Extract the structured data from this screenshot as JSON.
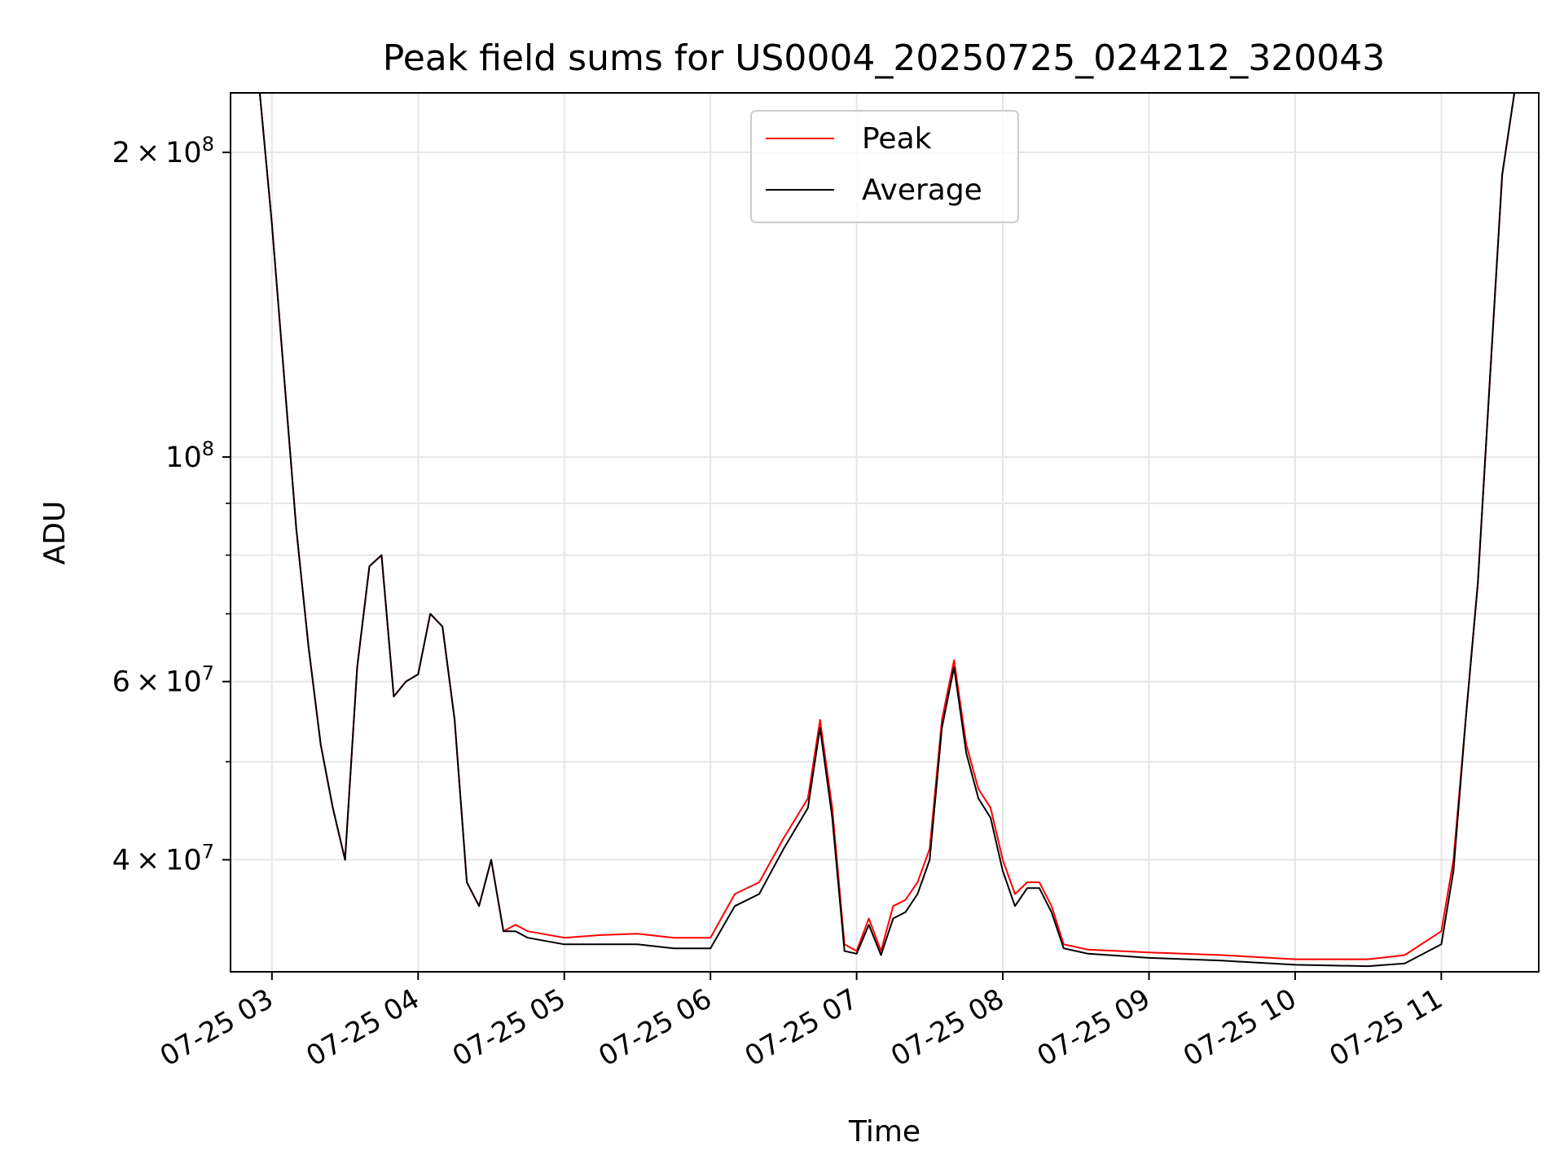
{
  "chart_data": {
    "type": "line",
    "title": "Peak field sums for US0004_20250725_024212_320043",
    "xlabel": "Time",
    "ylabel": "ADU",
    "yscale": "log",
    "xlim": [
      "2025-07-25 02:43",
      "2025-07-25 11:40"
    ],
    "ylim": [
      31000000,
      229000000
    ],
    "grid": true,
    "legend_position": "top-center",
    "x_ticks": [
      {
        "label": "07-25 03",
        "time": "2025-07-25 03:00"
      },
      {
        "label": "07-25 04",
        "time": "2025-07-25 04:00"
      },
      {
        "label": "07-25 05",
        "time": "2025-07-25 05:00"
      },
      {
        "label": "07-25 06",
        "time": "2025-07-25 06:00"
      },
      {
        "label": "07-25 07",
        "time": "2025-07-25 07:00"
      },
      {
        "label": "07-25 08",
        "time": "2025-07-25 08:00"
      },
      {
        "label": "07-25 09",
        "time": "2025-07-25 09:00"
      },
      {
        "label": "07-25 10",
        "time": "2025-07-25 10:00"
      },
      {
        "label": "07-25 11",
        "time": "2025-07-25 11:00"
      }
    ],
    "y_major_ticks": [
      {
        "base": "2 × 10",
        "exp": "8",
        "value": 200000000
      },
      {
        "base": "10",
        "exp": "8",
        "value": 100000000
      },
      {
        "base": "6 × 10",
        "exp": "7",
        "value": 60000000
      },
      {
        "base": "4 × 10",
        "exp": "7",
        "value": 40000000
      }
    ],
    "y_minor_ticks": [
      90000000,
      80000000,
      70000000,
      50000000,
      30000000
    ],
    "series": [
      {
        "name": "Peak",
        "color": "#ff0000",
        "x": [
          "2025-07-25 02:43",
          "2025-07-25 02:55",
          "2025-07-25 03:00",
          "2025-07-25 03:05",
          "2025-07-25 03:10",
          "2025-07-25 03:15",
          "2025-07-25 03:20",
          "2025-07-25 03:25",
          "2025-07-25 03:30",
          "2025-07-25 03:35",
          "2025-07-25 03:40",
          "2025-07-25 03:45",
          "2025-07-25 03:50",
          "2025-07-25 03:55",
          "2025-07-25 04:00",
          "2025-07-25 04:05",
          "2025-07-25 04:10",
          "2025-07-25 04:15",
          "2025-07-25 04:20",
          "2025-07-25 04:25",
          "2025-07-25 04:30",
          "2025-07-25 04:35",
          "2025-07-25 04:40",
          "2025-07-25 04:45",
          "2025-07-25 05:00",
          "2025-07-25 05:15",
          "2025-07-25 05:30",
          "2025-07-25 05:45",
          "2025-07-25 06:00",
          "2025-07-25 06:10",
          "2025-07-25 06:20",
          "2025-07-25 06:30",
          "2025-07-25 06:40",
          "2025-07-25 06:45",
          "2025-07-25 06:50",
          "2025-07-25 06:55",
          "2025-07-25 07:00",
          "2025-07-25 07:05",
          "2025-07-25 07:10",
          "2025-07-25 07:15",
          "2025-07-25 07:20",
          "2025-07-25 07:25",
          "2025-07-25 07:30",
          "2025-07-25 07:35",
          "2025-07-25 07:40",
          "2025-07-25 07:45",
          "2025-07-25 07:50",
          "2025-07-25 07:55",
          "2025-07-25 08:00",
          "2025-07-25 08:05",
          "2025-07-25 08:10",
          "2025-07-25 08:15",
          "2025-07-25 08:20",
          "2025-07-25 08:25",
          "2025-07-25 08:30",
          "2025-07-25 08:35",
          "2025-07-25 09:00",
          "2025-07-25 09:30",
          "2025-07-25 10:00",
          "2025-07-25 10:30",
          "2025-07-25 10:45",
          "2025-07-25 11:00",
          "2025-07-25 11:05",
          "2025-07-25 11:10",
          "2025-07-25 11:15",
          "2025-07-25 11:20",
          "2025-07-25 11:25",
          "2025-07-25 11:30",
          "2025-07-25 11:35",
          "2025-07-25 11:40"
        ],
        "y": [
          229000000,
          229000000,
          170000000,
          120000000,
          85000000,
          65000000,
          52000000,
          45000000,
          40000000,
          62000000,
          78000000,
          80000000,
          58000000,
          60000000,
          61000000,
          70000000,
          68000000,
          55000000,
          38000000,
          36000000,
          40000000,
          34000000,
          34500000,
          34000000,
          33500000,
          33700000,
          33800000,
          33500000,
          33500000,
          37000000,
          38000000,
          42000000,
          46000000,
          55000000,
          45000000,
          33000000,
          32500000,
          35000000,
          32500000,
          36000000,
          36500000,
          38000000,
          41000000,
          55000000,
          63000000,
          52000000,
          47000000,
          45000000,
          40000000,
          37000000,
          38000000,
          38000000,
          36000000,
          33000000,
          32800000,
          32600000,
          32400000,
          32200000,
          31900000,
          31900000,
          32200000,
          34000000,
          40000000,
          55000000,
          75000000,
          120000000,
          190000000,
          229000000,
          229000000,
          229000000
        ]
      },
      {
        "name": "Average",
        "color": "#000000",
        "x": [
          "2025-07-25 02:43",
          "2025-07-25 02:55",
          "2025-07-25 03:00",
          "2025-07-25 03:05",
          "2025-07-25 03:10",
          "2025-07-25 03:15",
          "2025-07-25 03:20",
          "2025-07-25 03:25",
          "2025-07-25 03:30",
          "2025-07-25 03:35",
          "2025-07-25 03:40",
          "2025-07-25 03:45",
          "2025-07-25 03:50",
          "2025-07-25 03:55",
          "2025-07-25 04:00",
          "2025-07-25 04:05",
          "2025-07-25 04:10",
          "2025-07-25 04:15",
          "2025-07-25 04:20",
          "2025-07-25 04:25",
          "2025-07-25 04:30",
          "2025-07-25 04:35",
          "2025-07-25 04:40",
          "2025-07-25 04:45",
          "2025-07-25 05:00",
          "2025-07-25 05:15",
          "2025-07-25 05:30",
          "2025-07-25 05:45",
          "2025-07-25 06:00",
          "2025-07-25 06:10",
          "2025-07-25 06:20",
          "2025-07-25 06:30",
          "2025-07-25 06:40",
          "2025-07-25 06:45",
          "2025-07-25 06:50",
          "2025-07-25 06:55",
          "2025-07-25 07:00",
          "2025-07-25 07:05",
          "2025-07-25 07:10",
          "2025-07-25 07:15",
          "2025-07-25 07:20",
          "2025-07-25 07:25",
          "2025-07-25 07:30",
          "2025-07-25 07:35",
          "2025-07-25 07:40",
          "2025-07-25 07:45",
          "2025-07-25 07:50",
          "2025-07-25 07:55",
          "2025-07-25 08:00",
          "2025-07-25 08:05",
          "2025-07-25 08:10",
          "2025-07-25 08:15",
          "2025-07-25 08:20",
          "2025-07-25 08:25",
          "2025-07-25 08:30",
          "2025-07-25 08:35",
          "2025-07-25 09:00",
          "2025-07-25 09:30",
          "2025-07-25 10:00",
          "2025-07-25 10:30",
          "2025-07-25 10:45",
          "2025-07-25 11:00",
          "2025-07-25 11:05",
          "2025-07-25 11:10",
          "2025-07-25 11:15",
          "2025-07-25 11:20",
          "2025-07-25 11:25",
          "2025-07-25 11:30",
          "2025-07-25 11:35",
          "2025-07-25 11:40"
        ],
        "y": [
          229000000,
          229000000,
          170000000,
          120000000,
          85000000,
          65000000,
          52000000,
          45000000,
          40000000,
          62000000,
          78000000,
          80000000,
          58000000,
          60000000,
          61000000,
          70000000,
          68000000,
          55000000,
          38000000,
          36000000,
          40000000,
          34000000,
          34000000,
          33500000,
          33000000,
          33000000,
          33000000,
          32700000,
          32700000,
          36000000,
          37000000,
          41000000,
          45000000,
          54000000,
          44000000,
          32500000,
          32300000,
          34500000,
          32200000,
          35000000,
          35500000,
          37000000,
          40000000,
          54000000,
          62000000,
          51000000,
          46000000,
          44000000,
          39000000,
          36000000,
          37500000,
          37500000,
          35500000,
          32700000,
          32500000,
          32300000,
          32000000,
          31800000,
          31500000,
          31400000,
          31600000,
          33000000,
          39000000,
          55000000,
          75000000,
          120000000,
          190000000,
          229000000,
          229000000,
          229000000
        ]
      }
    ]
  }
}
